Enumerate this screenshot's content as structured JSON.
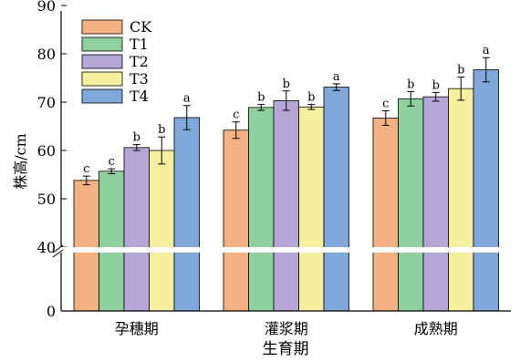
{
  "chart_data": {
    "type": "bar",
    "xlabel": "生育期",
    "ylabel": "株高/cm",
    "categories": [
      "孕穗期",
      "灌浆期",
      "成熟期"
    ],
    "y_break": [
      0,
      40
    ],
    "y_ticks": [
      0,
      40,
      50,
      60,
      70,
      80,
      90
    ],
    "ylim": [
      0,
      90
    ],
    "grid": false,
    "legend_position": "top-left",
    "colors": [
      "#f4b183",
      "#8fd19e",
      "#b4a7d6",
      "#f5f0a0",
      "#7fa7d9"
    ],
    "series": [
      {
        "name": "CK",
        "values": [
          53.8,
          64.2,
          66.7
        ],
        "errors": [
          0.9,
          1.7,
          1.5
        ],
        "letters": [
          "c",
          "c",
          "c"
        ]
      },
      {
        "name": "T1",
        "values": [
          55.7,
          68.9,
          70.7
        ],
        "errors": [
          0.5,
          0.6,
          1.5
        ],
        "letters": [
          "c",
          "b",
          "b"
        ]
      },
      {
        "name": "T2",
        "values": [
          60.6,
          70.3,
          71.1
        ],
        "errors": [
          0.6,
          2.0,
          0.9
        ],
        "letters": [
          "b",
          "b",
          "b"
        ]
      },
      {
        "name": "T3",
        "values": [
          60.0,
          69.0,
          72.8
        ],
        "errors": [
          2.8,
          0.5,
          2.4
        ],
        "letters": [
          "b",
          "b",
          "b"
        ]
      },
      {
        "name": "T4",
        "values": [
          66.8,
          73.1,
          76.7
        ],
        "errors": [
          2.5,
          0.7,
          2.5
        ],
        "letters": [
          "a",
          "a",
          "a"
        ]
      }
    ]
  }
}
